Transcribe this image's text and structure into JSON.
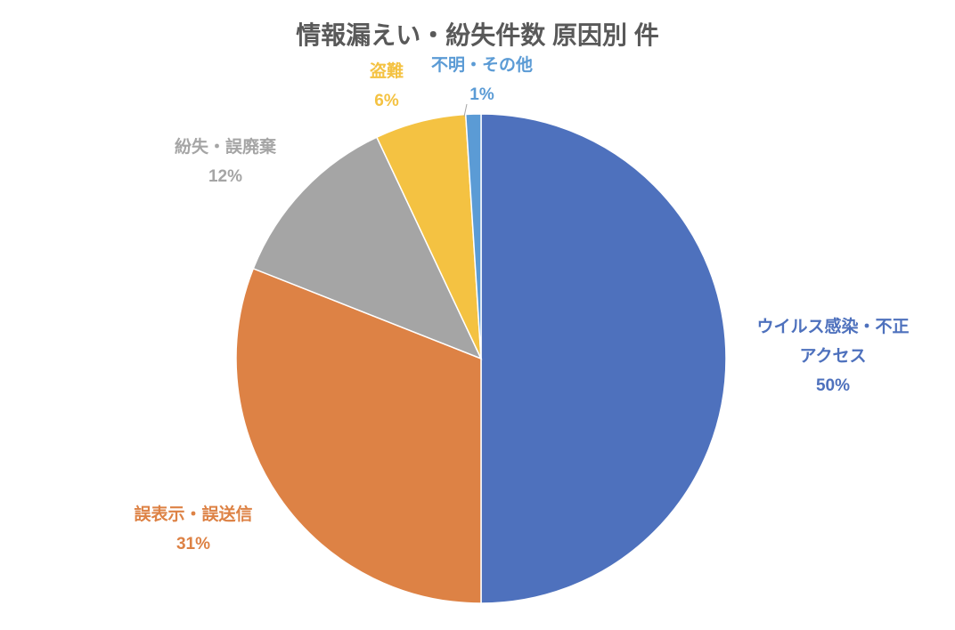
{
  "chart_data": {
    "type": "pie",
    "title": "情報漏えい・紛失件数 原因別 件",
    "categories": [
      "ウイルス感染・不正アクセス",
      "誤表示・誤送信",
      "紛失・誤廃棄",
      "盗難",
      "不明・その他"
    ],
    "values": [
      50,
      31,
      12,
      6,
      1
    ],
    "value_labels": [
      "50%",
      "31%",
      "12%",
      "6%",
      "1%"
    ],
    "colors": [
      "#4e71bd",
      "#dd8245",
      "#a5a5a5",
      "#f4c242",
      "#5b9bd5"
    ]
  }
}
